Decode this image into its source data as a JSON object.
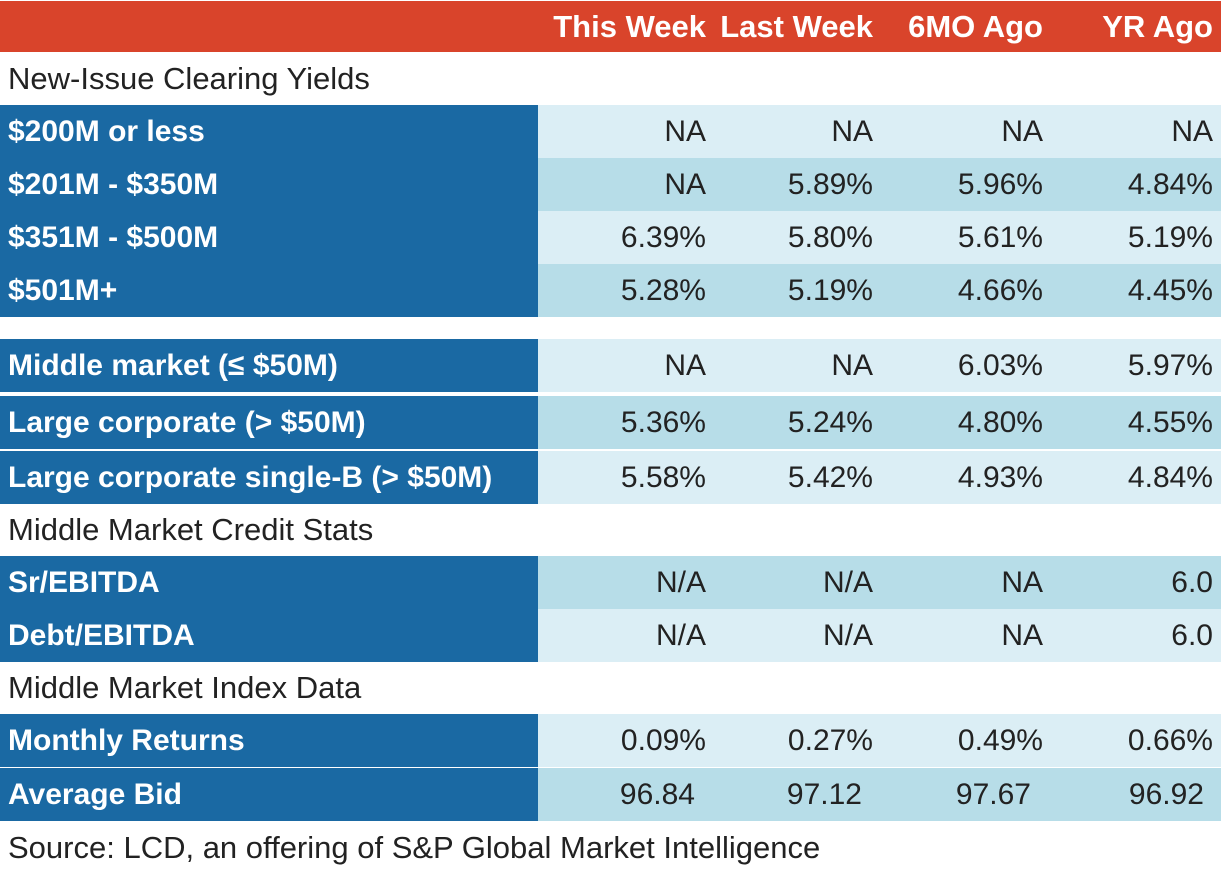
{
  "header": {
    "columns": [
      "This Week",
      "Last Week",
      "6MO Ago",
      "YR Ago"
    ]
  },
  "sections": [
    {
      "title": "New-Issue Clearing Yields",
      "rows": [
        {
          "label": "$200M or less",
          "values": [
            "NA",
            "NA",
            "NA",
            "NA"
          ]
        },
        {
          "label": "$201M - $350M",
          "values": [
            "NA",
            "5.89%",
            "5.96%",
            "4.84%"
          ]
        },
        {
          "label": "$351M - $500M",
          "values": [
            "6.39%",
            "5.80%",
            "5.61%",
            "5.19%"
          ]
        },
        {
          "label": "$501M+",
          "values": [
            "5.28%",
            "5.19%",
            "4.66%",
            "4.45%"
          ]
        }
      ]
    },
    {
      "title": "",
      "rows": [
        {
          "label": "Middle market (≤ $50M)",
          "values": [
            "NA",
            "NA",
            "6.03%",
            "5.97%"
          ]
        },
        {
          "label": "Large corporate (> $50M)",
          "values": [
            "5.36%",
            "5.24%",
            "4.80%",
            "4.55%"
          ]
        },
        {
          "label": "Large corporate single-B (> $50M)",
          "values": [
            "5.58%",
            "5.42%",
            "4.93%",
            "4.84%"
          ]
        }
      ]
    },
    {
      "title": "Middle Market Credit Stats",
      "rows": [
        {
          "label": "Sr/EBITDA",
          "values": [
            "N/A",
            "N/A",
            "NA",
            "6.0"
          ]
        },
        {
          "label": "Debt/EBITDA",
          "values": [
            "N/A",
            "N/A",
            "NA",
            "6.0"
          ]
        }
      ]
    },
    {
      "title": "Middle Market Index Data",
      "rows": [
        {
          "label": "Monthly Returns",
          "values": [
            "0.09%",
            "0.27%",
            "0.49%",
            "0.66%"
          ]
        },
        {
          "label": "Average Bid",
          "values": [
            "96.84",
            "97.12",
            "97.67",
            "96.92"
          ]
        }
      ]
    }
  ],
  "footer": {
    "source": "Source: LCD, an offering of S&P Global Market Intelligence"
  },
  "colors": {
    "header_bg": "#d9442b",
    "label_bg": "#1a69a3",
    "row_light": "#dbeef5",
    "row_dark": "#b7dde8"
  }
}
